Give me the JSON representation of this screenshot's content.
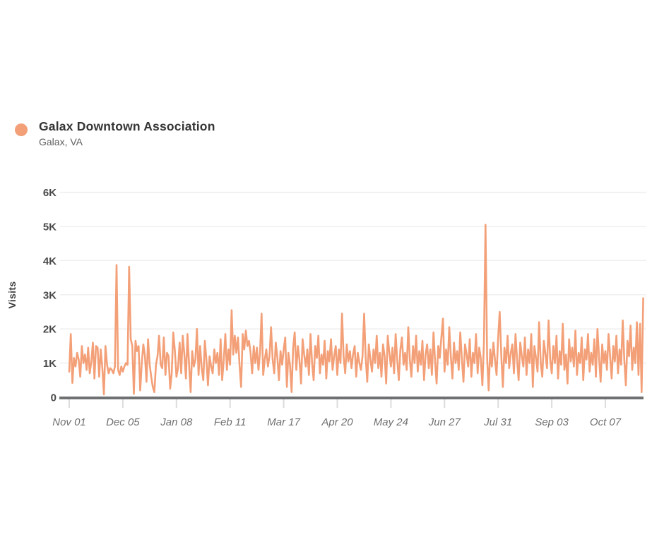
{
  "legend": {
    "title": "Galax Downtown Association",
    "subtitle": "Galax, VA",
    "dot_color": "#F3A078"
  },
  "chart_data": {
    "type": "line",
    "title": "",
    "xlabel": "",
    "ylabel": "Visits",
    "series_name": "Galax Downtown Association",
    "line_color": "#F3A078",
    "grid": "horizontal",
    "legend_position": "top-left",
    "ylim": [
      0,
      6000
    ],
    "y_tick_values": [
      0,
      1000,
      2000,
      3000,
      4000,
      5000,
      6000
    ],
    "y_tick_labels": [
      "0",
      "1K",
      "2K",
      "3K",
      "4K",
      "5K",
      "6K"
    ],
    "x_tick_labels": [
      "Nov 01",
      "Dec 05",
      "Jan 08",
      "Feb 11",
      "Mar 17",
      "Apr 20",
      "May 24",
      "Jun 27",
      "Jul 31",
      "Sep 03",
      "Oct 07"
    ],
    "x_tick_day_indices": [
      0,
      34,
      68,
      102,
      136,
      170,
      204,
      238,
      272,
      306,
      340
    ],
    "x_unit": "day",
    "values": [
      750,
      1850,
      420,
      1150,
      900,
      1300,
      1100,
      600,
      1500,
      1000,
      1250,
      800,
      1450,
      700,
      1050,
      1600,
      550,
      1500,
      1450,
      600,
      1400,
      850,
      80,
      1500,
      950,
      700,
      850,
      800,
      700,
      900,
      3870,
      800,
      650,
      900,
      750,
      900,
      1000,
      950,
      3820,
      1700,
      1500,
      100,
      1650,
      1350,
      1500,
      200,
      1000,
      1550,
      1200,
      450,
      1700,
      950,
      600,
      300,
      150,
      950,
      1200,
      1800,
      950,
      850,
      1750,
      650,
      1300,
      1200,
      250,
      700,
      1900,
      1350,
      600,
      850,
      1600,
      700,
      1800,
      1250,
      550,
      1850,
      950,
      150,
      1350,
      900,
      1100,
      2000,
      650,
      1500,
      850,
      500,
      1650,
      1100,
      350,
      1200,
      900,
      700,
      1400,
      1000,
      1300,
      650,
      1700,
      500,
      1100,
      1850,
      800,
      1400,
      950,
      2550,
      1250,
      1800,
      1300,
      1750,
      950,
      300,
      1850,
      1400,
      1950,
      1500,
      1650,
      1300,
      700,
      1500,
      1000,
      1450,
      800,
      1300,
      2450,
      650,
      1100,
      1400,
      900,
      1200,
      2050,
      1100,
      700,
      1600,
      1150,
      500,
      1350,
      950,
      1400,
      1750,
      300,
      1300,
      950,
      150,
      1450,
      1900,
      800,
      1500,
      1100,
      400,
      1700,
      1250,
      900,
      1400,
      650,
      1850,
      1000,
      500,
      1500,
      1150,
      1800,
      700,
      1250,
      950,
      1650,
      550,
      1350,
      1050,
      1700,
      800,
      1200,
      1500,
      650,
      1400,
      1000,
      2450,
      1200,
      700,
      1550,
      1050,
      1350,
      850,
      1250,
      1500,
      600,
      1300,
      1000,
      800,
      1200,
      2450,
      1150,
      450,
      1550,
      1100,
      750,
      1400,
      1000,
      1800,
      850,
      1300,
      600,
      1550,
      1200,
      400,
      1800,
      1300,
      900,
      1450,
      700,
      1850,
      1100,
      500,
      1400,
      1750,
      950,
      1300,
      800,
      2050,
      1100,
      600,
      1500,
      1000,
      1800,
      750,
      1350,
      950,
      1650,
      500,
      1250,
      1550,
      850,
      1400,
      650,
      1900,
      1050,
      400,
      1500,
      1150,
      1750,
      2300,
      750,
      1400,
      950,
      2050,
      1200,
      550,
      1600,
      1000,
      1350,
      800,
      1900,
      1100,
      450,
      1550,
      1250,
      900,
      1700,
      600,
      1300,
      1000,
      1850,
      700,
      1450,
      1150,
      350,
      1600,
      5050,
      1150,
      200,
      1400,
      900,
      1600,
      1100,
      650,
      1750,
      2500,
      1200,
      300,
      1450,
      1000,
      1800,
      850,
      1300,
      1550,
      700,
      1850,
      1100,
      500,
      1600,
      1200,
      900,
      1750,
      650,
      1400,
      1000,
      1850,
      300,
      1500,
      1150,
      750,
      2200,
      1000,
      600,
      1650,
      1250,
      850,
      2250,
      1100,
      700,
      1500,
      1000,
      1800,
      550,
      1350,
      950,
      2150,
      800,
      1250,
      400,
      1700,
      1050,
      1450,
      900,
      1950,
      650,
      1300,
      1000,
      1750,
      500,
      1400,
      1100,
      1850,
      750,
      1300,
      950,
      1700,
      600,
      2000,
      1150,
      450,
      1550,
      1000,
      1350,
      800,
      1850,
      1200,
      550,
      1500,
      1050,
      1800,
      700,
      1400,
      950,
      2250,
      1100,
      350,
      1650,
      1200,
      2100,
      800,
      1450,
      1000,
      2200,
      650,
      2150,
      150,
      2900
    ]
  }
}
